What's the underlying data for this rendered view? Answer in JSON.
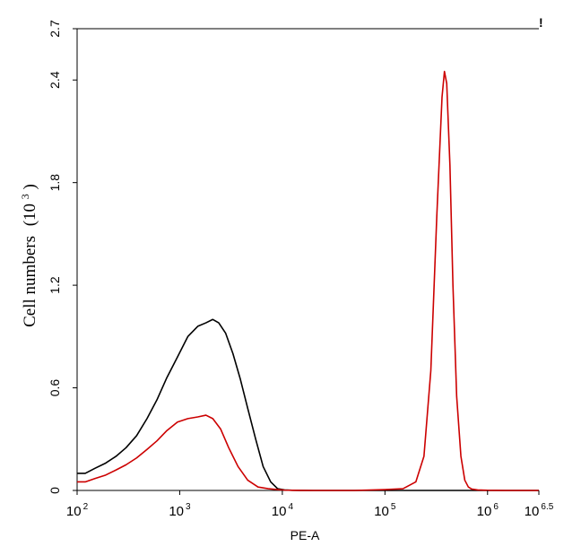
{
  "chart_data": {
    "type": "line",
    "title": "",
    "xlabel": "PE-A",
    "ylabel": "Cell numbers",
    "ylabel_unit_base": "(10",
    "ylabel_unit_exp": "3",
    "ylabel_unit_close": ")",
    "xscale": "log",
    "xlim": [
      100,
      3162278
    ],
    "ylim": [
      0,
      2.7
    ],
    "yticks": [
      {
        "value": 0,
        "label": "0"
      },
      {
        "value": 0.6,
        "label": "0.6"
      },
      {
        "value": 1.2,
        "label": "1.2"
      },
      {
        "value": 1.8,
        "label": "1.8"
      },
      {
        "value": 2.4,
        "label": "2.4"
      },
      {
        "value": 2.7,
        "label": "2.7"
      }
    ],
    "xticks": [
      {
        "value": 100,
        "base": "10",
        "exp": "2"
      },
      {
        "value": 1000,
        "base": "10",
        "exp": "3"
      },
      {
        "value": 10000,
        "base": "10",
        "exp": "4"
      },
      {
        "value": 100000,
        "base": "10",
        "exp": "5"
      },
      {
        "value": 1000000,
        "base": "10",
        "exp": "6"
      },
      {
        "value": 3162278,
        "base": "10",
        "exp": "6.5"
      }
    ],
    "corner_mark": "!",
    "grid": false,
    "series": [
      {
        "color": "#000000",
        "x": [
          100,
          120,
          150,
          190,
          240,
          300,
          380,
          480,
          600,
          750,
          950,
          1200,
          1500,
          1800,
          2100,
          2400,
          2800,
          3300,
          3900,
          4600,
          5500,
          6500,
          7700,
          9000,
          10500,
          12500,
          15000,
          20000,
          30000,
          50000,
          100000,
          300000,
          1000000,
          3162278
        ],
        "y": [
          0.1,
          0.1,
          0.13,
          0.16,
          0.2,
          0.25,
          0.32,
          0.42,
          0.53,
          0.66,
          0.78,
          0.9,
          0.96,
          0.98,
          1.0,
          0.98,
          0.92,
          0.8,
          0.65,
          0.48,
          0.3,
          0.14,
          0.05,
          0.01,
          0.003,
          0.001,
          0.0005,
          0,
          0,
          0,
          0,
          0,
          0,
          0
        ]
      },
      {
        "color": "#cc0000",
        "x": [
          100,
          120,
          150,
          190,
          240,
          300,
          380,
          480,
          600,
          750,
          950,
          1200,
          1500,
          1800,
          2100,
          2500,
          3000,
          3700,
          4600,
          5800,
          7300,
          9000,
          10500,
          12500,
          15000,
          20000,
          30000,
          50000,
          100000,
          150000,
          200000,
          240000,
          280000,
          320000,
          360000,
          380000,
          400000,
          430000,
          460000,
          500000,
          550000,
          600000,
          650000,
          700000,
          800000,
          1000000,
          1500000,
          3162278
        ],
        "y": [
          0.05,
          0.05,
          0.07,
          0.09,
          0.12,
          0.15,
          0.19,
          0.24,
          0.29,
          0.35,
          0.4,
          0.42,
          0.43,
          0.44,
          0.42,
          0.36,
          0.25,
          0.14,
          0.06,
          0.02,
          0.01,
          0.005,
          0.002,
          0.001,
          0.0005,
          0,
          0,
          0,
          0.005,
          0.01,
          0.05,
          0.2,
          0.7,
          1.6,
          2.3,
          2.45,
          2.38,
          1.9,
          1.2,
          0.55,
          0.2,
          0.06,
          0.02,
          0.008,
          0.003,
          0.001,
          0,
          0
        ]
      }
    ]
  }
}
